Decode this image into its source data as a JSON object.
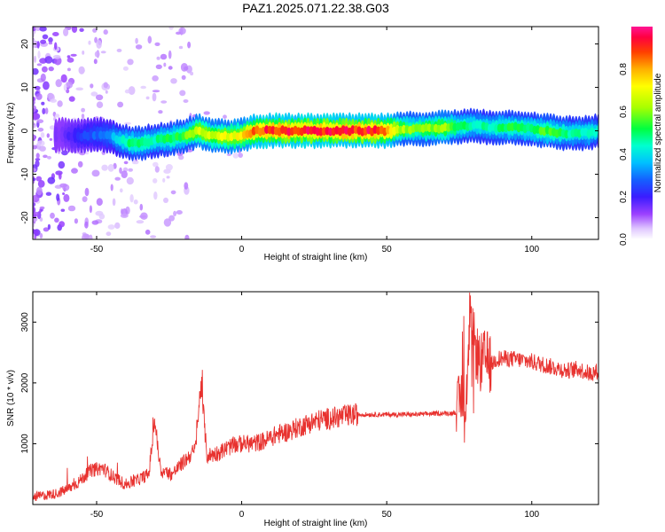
{
  "figure_title": "PAZ1.2025.071.22.38.G03",
  "chart_data": [
    {
      "type": "heatmap",
      "panel": "spectrogram",
      "xlabel": "Height of straight line (km)",
      "ylabel": "Frequency (Hz)",
      "xlim": [
        -72,
        123
      ],
      "ylim": [
        -25,
        24
      ],
      "xticks": [
        -50,
        0,
        50,
        100
      ],
      "yticks": [
        -20,
        -10,
        0,
        10,
        20
      ],
      "colorbar": {
        "label": "Normalized spectral amplitude",
        "ticks": [
          0.0,
          0.2,
          0.4,
          0.6,
          0.8
        ],
        "range": [
          0,
          1
        ],
        "colormap": [
          "#ffffff",
          "#d7b4ff",
          "#8a2be2",
          "#3a1cff",
          "#1460ff",
          "#00bfff",
          "#00ffd0",
          "#00ff40",
          "#a8ff00",
          "#ffff00",
          "#ffb000",
          "#ff4000",
          "#ff0050",
          "#ff1493"
        ]
      },
      "ridge": {
        "x": [
          -62,
          -55,
          -50,
          -45,
          -42,
          -38,
          -35,
          -30,
          -25,
          -20,
          -15,
          -10,
          -5,
          0,
          5,
          10,
          15,
          20,
          25,
          30,
          35,
          40,
          45,
          50,
          55,
          60,
          65,
          70,
          75,
          80,
          85,
          90,
          95,
          100,
          105,
          110,
          115,
          120,
          123
        ],
        "freq": [
          -1.0,
          -1.3,
          -0.8,
          -1.3,
          -2.0,
          -3.0,
          -2.8,
          -2.2,
          -1.8,
          -1.3,
          0.0,
          -1.2,
          -1.3,
          -1.0,
          0.0,
          0.0,
          0.0,
          0.0,
          0.0,
          0.0,
          0.0,
          0.0,
          0.0,
          0.0,
          0.3,
          0.5,
          0.5,
          0.8,
          0.8,
          1.3,
          0.8,
          0.8,
          0.8,
          0.5,
          0.0,
          -0.5,
          -0.5,
          -0.5,
          0.0
        ],
        "amplitude": [
          0.15,
          0.25,
          0.3,
          0.35,
          0.45,
          0.55,
          0.55,
          0.5,
          0.55,
          0.6,
          0.75,
          0.7,
          0.75,
          0.8,
          0.95,
          1.0,
          1.0,
          1.0,
          1.0,
          1.0,
          1.0,
          1.0,
          1.0,
          0.95,
          0.7,
          0.6,
          0.65,
          0.7,
          0.55,
          0.5,
          0.5,
          0.55,
          0.55,
          0.55,
          0.6,
          0.55,
          0.5,
          0.5,
          0.45
        ]
      }
    },
    {
      "type": "line",
      "panel": "snr",
      "xlabel": "Height of straight line (km)",
      "ylabel": "SNR (10 * v/v)",
      "xlim": [
        -72,
        123
      ],
      "ylim": [
        0,
        3500
      ],
      "xticks": [
        -50,
        0,
        50,
        100
      ],
      "yticks": [
        1000,
        2000,
        3000
      ],
      "color": "#e8322f",
      "x": [
        -72,
        -68,
        -64,
        -60,
        -56,
        -52,
        -48,
        -44,
        -40,
        -36,
        -32,
        -30,
        -28,
        -24,
        -20,
        -16,
        -14,
        -12,
        -8,
        -4,
        0,
        4,
        8,
        12,
        16,
        20,
        24,
        28,
        32,
        36,
        40,
        44,
        48,
        52,
        56,
        60,
        64,
        68,
        72,
        74,
        76,
        77,
        78,
        79,
        80,
        82,
        84,
        86,
        88,
        92,
        96,
        100,
        104,
        108,
        112,
        116,
        120,
        123
      ],
      "y": [
        120,
        150,
        180,
        250,
        380,
        560,
        600,
        450,
        330,
        400,
        500,
        1400,
        550,
        500,
        700,
        900,
        2000,
        800,
        850,
        950,
        1000,
        1000,
        1050,
        1150,
        1200,
        1280,
        1350,
        1400,
        1430,
        1460,
        1480,
        1480,
        1480,
        1480,
        1480,
        1480,
        1490,
        1500,
        1500,
        1520,
        1800,
        1300,
        2600,
        3300,
        2700,
        2300,
        2400,
        2300,
        2400,
        2400,
        2380,
        2350,
        2300,
        2250,
        2200,
        2230,
        2150,
        2200
      ]
    }
  ]
}
